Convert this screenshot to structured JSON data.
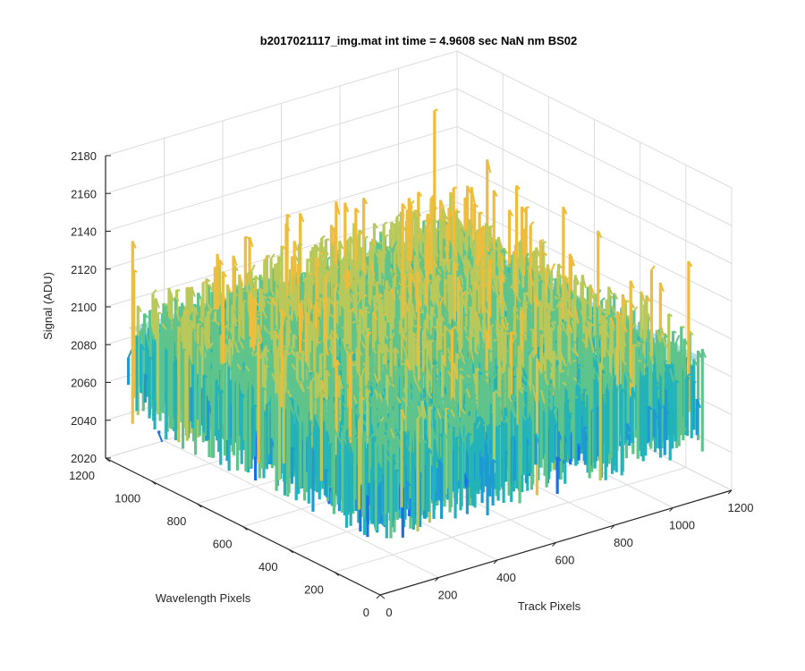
{
  "chart_data": {
    "type": "surface",
    "title": "b2017021117_img.mat int time = 4.9608 sec  NaN nm BS02",
    "xlabel": "Track Pixels",
    "ylabel": "Wavelength Pixels",
    "zlabel": "Signal (ADU)",
    "xlim": [
      0,
      1200
    ],
    "ylim": [
      0,
      1200
    ],
    "zlim": [
      2020,
      2180
    ],
    "xticks": [
      "0",
      "200",
      "400",
      "600",
      "800",
      "1000",
      "1200"
    ],
    "yticks": [
      "0",
      "200",
      "400",
      "600",
      "800",
      "1000",
      "1200"
    ],
    "zticks": [
      "2020",
      "2040",
      "2060",
      "2080",
      "2100",
      "2120",
      "2140",
      "2160",
      "2180"
    ],
    "grid": true,
    "surface": {
      "x_range": [
        0,
        1100
      ],
      "y_range": [
        0,
        1100
      ],
      "z_typical_range": [
        2060,
        2130
      ],
      "z_mean": 2095,
      "z_max": 2165,
      "z_min": 2040
    },
    "colormap": [
      "#1f6fe0",
      "#1d9ad0",
      "#23b3b8",
      "#5fc48c",
      "#b9c85a",
      "#eebd3c"
    ]
  }
}
